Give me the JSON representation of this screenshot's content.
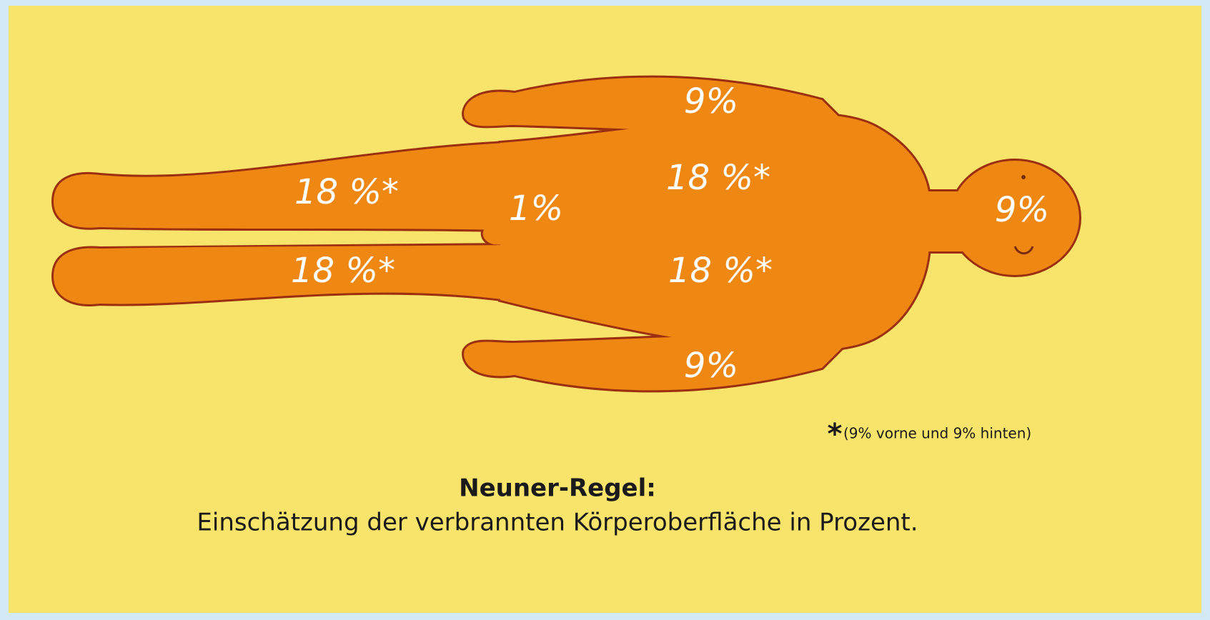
{
  "labels": [
    "9%",
    "18 %*",
    "18 %*",
    "1%",
    "18 %*",
    "18 %*",
    "9%",
    "9%"
  ],
  "footnote": {
    "marker": "*",
    "text": "(9% vorne und 9% hinten)"
  },
  "caption": {
    "title": "Neuner-Regel:",
    "subtitle": "Einschätzung der verbrannten Körperoberfläche in Prozent."
  }
}
